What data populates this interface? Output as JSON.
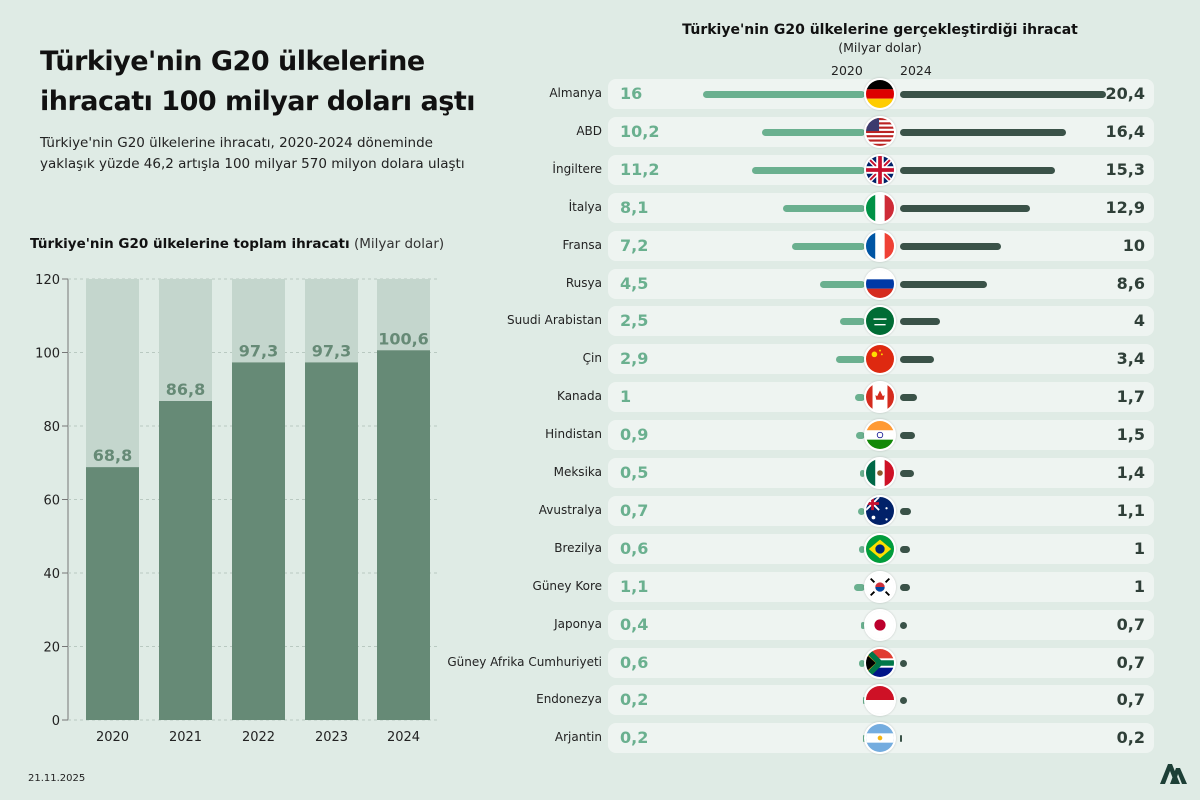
{
  "header": {
    "title_line1": "Türkiye'nin G20 ülkelerine",
    "title_line2": "ihracatı 100 milyar doları aştı",
    "subtitle_line1": "Türkiye'nin G20 ülkelerine ihracatı, 2020-2024 döneminde",
    "subtitle_line2": "yaklaşık yüzde 46,2 artışla 100 milyar 570 milyon dolara ulaştı"
  },
  "footer": {
    "date": "21.11.2025",
    "logo": "AA"
  },
  "colors": {
    "background": "#dfebe5",
    "bar": "#668a76",
    "bar_track": "#c4d6cd",
    "bar_2020": "#6ab08f",
    "bar_2024": "#3a5248"
  },
  "chart_data": [
    {
      "type": "bar",
      "title": "Türkiye'nin G20 ülkelerine toplam ihracatı",
      "unit": "(Milyar dolar)",
      "categories": [
        "2020",
        "2021",
        "2022",
        "2023",
        "2024"
      ],
      "values": [
        68.8,
        86.8,
        97.3,
        97.3,
        100.6
      ],
      "labels": [
        "68,8",
        "86,8",
        "97,3",
        "97,3",
        "100,6"
      ],
      "ylim": [
        0,
        120
      ],
      "yticks": [
        "0",
        "20",
        "40",
        "60",
        "80",
        "100",
        "120"
      ],
      "grid": true
    },
    {
      "type": "bar",
      "orientation": "horizontal-butterfly",
      "title": "Türkiye'nin G20 ülkelerine gerçekleştirdiği ihracat",
      "unit": "(Milyar dolar)",
      "series_names": [
        "2020",
        "2024"
      ],
      "countries": [
        {
          "name": "Almanya",
          "flag": "de",
          "v2020": 16,
          "v2024": 20.4,
          "l2020": "16",
          "l2024": "20,4"
        },
        {
          "name": "ABD",
          "flag": "us",
          "v2020": 10.2,
          "v2024": 16.4,
          "l2020": "10,2",
          "l2024": "16,4"
        },
        {
          "name": "İngiltere",
          "flag": "gb",
          "v2020": 11.2,
          "v2024": 15.3,
          "l2020": "11,2",
          "l2024": "15,3"
        },
        {
          "name": "İtalya",
          "flag": "it",
          "v2020": 8.1,
          "v2024": 12.9,
          "l2020": "8,1",
          "l2024": "12,9"
        },
        {
          "name": "Fransa",
          "flag": "fr",
          "v2020": 7.2,
          "v2024": 10,
          "l2020": "7,2",
          "l2024": "10"
        },
        {
          "name": "Rusya",
          "flag": "ru",
          "v2020": 4.5,
          "v2024": 8.6,
          "l2020": "4,5",
          "l2024": "8,6"
        },
        {
          "name": "Suudi Arabistan",
          "flag": "sa",
          "v2020": 2.5,
          "v2024": 4,
          "l2020": "2,5",
          "l2024": "4"
        },
        {
          "name": "Çin",
          "flag": "cn",
          "v2020": 2.9,
          "v2024": 3.4,
          "l2020": "2,9",
          "l2024": "3,4"
        },
        {
          "name": "Kanada",
          "flag": "ca",
          "v2020": 1,
          "v2024": 1.7,
          "l2020": "1",
          "l2024": "1,7"
        },
        {
          "name": "Hindistan",
          "flag": "in",
          "v2020": 0.9,
          "v2024": 1.5,
          "l2020": "0,9",
          "l2024": "1,5"
        },
        {
          "name": "Meksika",
          "flag": "mx",
          "v2020": 0.5,
          "v2024": 1.4,
          "l2020": "0,5",
          "l2024": "1,4"
        },
        {
          "name": "Avustralya",
          "flag": "au",
          "v2020": 0.7,
          "v2024": 1.1,
          "l2020": "0,7",
          "l2024": "1,1"
        },
        {
          "name": "Brezilya",
          "flag": "br",
          "v2020": 0.6,
          "v2024": 1,
          "l2020": "0,6",
          "l2024": "1"
        },
        {
          "name": "Güney Kore",
          "flag": "kr",
          "v2020": 1.1,
          "v2024": 1,
          "l2020": "1,1",
          "l2024": "1"
        },
        {
          "name": "Japonya",
          "flag": "jp",
          "v2020": 0.4,
          "v2024": 0.7,
          "l2020": "0,4",
          "l2024": "0,7"
        },
        {
          "name": "Güney Afrika Cumhuriyeti",
          "flag": "za",
          "v2020": 0.6,
          "v2024": 0.7,
          "l2020": "0,6",
          "l2024": "0,7"
        },
        {
          "name": "Endonezya",
          "flag": "id",
          "v2020": 0.2,
          "v2024": 0.7,
          "l2020": "0,2",
          "l2024": "0,7"
        },
        {
          "name": "Arjantin",
          "flag": "ar",
          "v2020": 0.2,
          "v2024": 0.2,
          "l2020": "0,2",
          "l2024": "0,2"
        }
      ]
    }
  ]
}
